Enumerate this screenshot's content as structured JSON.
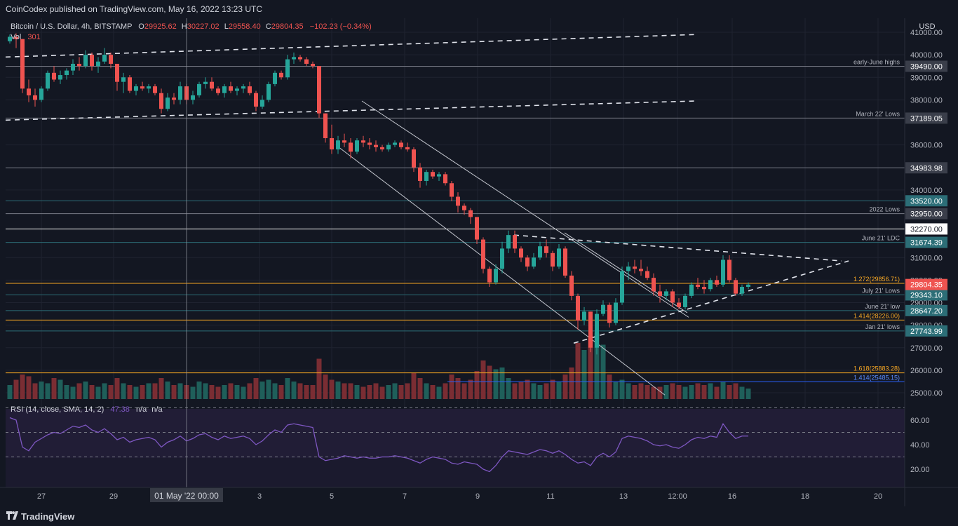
{
  "header": {
    "publisher_text": "CoinCodex published on TradingView.com, May 16, 2022 13:23 UTC"
  },
  "footer": {
    "brand": "TradingView"
  },
  "legend": {
    "symbol": "Bitcoin / U.S. Dollar, 4h, BITSTAMP",
    "open_label": "O",
    "open": "29925.62",
    "high_label": "H",
    "high": "30227.02",
    "low_label": "L",
    "low": "29558.40",
    "close_label": "C",
    "close": "29804.35",
    "change": "−102.23 (−0.34%)",
    "vol_label": "Vol",
    "vol_value": "301"
  },
  "rsi_legend": {
    "label": "RSI (14, close, SMA, 14, 2)",
    "value": "47.38",
    "na1": "n/a",
    "na2": "n/a"
  },
  "currency": "USD",
  "crosshair_label": "01 May '22  00:00",
  "colors": {
    "up": "#26a69a",
    "down": "#ef5350",
    "orange": "#f5a623",
    "blue": "#2962ff",
    "teal_tag": "#2c6e77",
    "rsi": "#7e57c2"
  },
  "chart_data": {
    "type": "candlestick",
    "symbol": "Bitcoin / U.S. Dollar",
    "interval": "4h",
    "exchange": "BITSTAMP",
    "ylim": [
      24700,
      41500
    ],
    "y_ticks": [
      "25000.00",
      "26000.00",
      "27000.00",
      "28000.00",
      "29000.00",
      "30000.00",
      "31000.00",
      "34000.00",
      "36000.00",
      "38000.00",
      "39000.00",
      "40000.00",
      "41000.00"
    ],
    "x_ticks": [
      "27",
      "29",
      "3",
      "5",
      "7",
      "9",
      "11",
      "13",
      "12:00",
      "16",
      "18",
      "20"
    ],
    "hlines": [
      {
        "price": 39490.0,
        "tag": "39490.00",
        "label": "early-June highs",
        "color": "#787b86"
      },
      {
        "price": 37189.05,
        "tag": "37189.05",
        "label": "March 22' Lows",
        "color": "#787b86"
      },
      {
        "price": 34983.98,
        "tag": "34983.98",
        "label": "",
        "color": "#787b86"
      },
      {
        "price": 33520.0,
        "tag": "33520.00",
        "label": "",
        "color": "#2c6e77"
      },
      {
        "price": 32950.0,
        "tag": "32950.00",
        "label": "2022 Lows",
        "color": "#787b86"
      },
      {
        "price": 32270.0,
        "tag": "32270.00",
        "label": "",
        "color": "#ffffff"
      },
      {
        "price": 31674.39,
        "tag": "31674.39",
        "label": "June 21' LDC",
        "color": "#2c6e77"
      },
      {
        "price": 29856.71,
        "tag": "",
        "label": "1.272(29856.71)",
        "color": "#f5a623"
      },
      {
        "price": 29343.1,
        "tag": "29343.10",
        "label": "July 21' Lows",
        "color": "#2c6e77"
      },
      {
        "price": 28647.2,
        "tag": "28647.20",
        "label": "June 21' low",
        "color": "#2c6e77"
      },
      {
        "price": 28226.0,
        "tag": "",
        "label": "1.414(28226.00)",
        "color": "#f5a623"
      },
      {
        "price": 27743.99,
        "tag": "27743.99",
        "label": "Jan 21' lows",
        "color": "#2c6e77"
      },
      {
        "price": 25883.28,
        "tag": "",
        "label": "1.618(25883.28)",
        "color": "#f5a623"
      },
      {
        "price": 25485.15,
        "tag": "",
        "label": "1.414(25485.15)",
        "color": "#2962ff"
      }
    ],
    "last_price": {
      "price": 29804.35,
      "tag": "29804.35"
    },
    "candles": [
      [
        40600,
        40900,
        40500,
        40800
      ],
      [
        40800,
        40950,
        40300,
        40700
      ],
      [
        40700,
        40700,
        38300,
        38500
      ],
      [
        38500,
        38900,
        37900,
        38200
      ],
      [
        38200,
        38500,
        37700,
        38000
      ],
      [
        38000,
        38600,
        37900,
        38500
      ],
      [
        38500,
        39300,
        38400,
        39200
      ],
      [
        39200,
        39500,
        38800,
        38900
      ],
      [
        38900,
        39300,
        38700,
        39100
      ],
      [
        39100,
        39400,
        38900,
        39300
      ],
      [
        39300,
        39800,
        39100,
        39600
      ],
      [
        39600,
        39900,
        39300,
        39500
      ],
      [
        39500,
        40200,
        39400,
        40000
      ],
      [
        40000,
        40100,
        39300,
        39500
      ],
      [
        39500,
        39900,
        39200,
        39700
      ],
      [
        39700,
        40300,
        39600,
        40000
      ],
      [
        40000,
        40100,
        39400,
        39600
      ],
      [
        39600,
        39600,
        38400,
        38800
      ],
      [
        38800,
        39200,
        38300,
        39000
      ],
      [
        39000,
        39100,
        38300,
        38400
      ],
      [
        38400,
        38700,
        38200,
        38600
      ],
      [
        38600,
        38800,
        38400,
        38500
      ],
      [
        38500,
        38700,
        38300,
        38600
      ],
      [
        38600,
        38700,
        38200,
        38300
      ],
      [
        38300,
        38500,
        37400,
        37600
      ],
      [
        37600,
        38300,
        37500,
        38100
      ],
      [
        38100,
        38300,
        37800,
        38000
      ],
      [
        38000,
        38800,
        37800,
        38600
      ],
      [
        38600,
        38700,
        37800,
        38000
      ],
      [
        38000,
        38400,
        37800,
        38200
      ],
      [
        38200,
        38800,
        38100,
        38700
      ],
      [
        38700,
        39000,
        38500,
        38800
      ],
      [
        38800,
        39000,
        38400,
        38500
      ],
      [
        38500,
        38600,
        38200,
        38300
      ],
      [
        38300,
        38700,
        38100,
        38600
      ],
      [
        38600,
        38800,
        38300,
        38400
      ],
      [
        38400,
        38600,
        38200,
        38500
      ],
      [
        38500,
        38700,
        38300,
        38600
      ],
      [
        38600,
        38800,
        38200,
        38300
      ],
      [
        38300,
        38400,
        37500,
        37700
      ],
      [
        37700,
        38200,
        37600,
        38000
      ],
      [
        38000,
        38800,
        37900,
        38700
      ],
      [
        38700,
        39300,
        38600,
        39200
      ],
      [
        39200,
        39300,
        38900,
        39000
      ],
      [
        39000,
        40000,
        38900,
        39800
      ],
      [
        39800,
        40100,
        39600,
        39900
      ],
      [
        39900,
        40000,
        39700,
        39800
      ],
      [
        39800,
        39900,
        39500,
        39600
      ],
      [
        39600,
        39700,
        39400,
        39500
      ],
      [
        39500,
        39500,
        37200,
        37400
      ],
      [
        37400,
        37400,
        36100,
        36300
      ],
      [
        36300,
        36900,
        35600,
        35800
      ],
      [
        35800,
        36400,
        35600,
        36200
      ],
      [
        36200,
        36500,
        35900,
        36100
      ],
      [
        36100,
        36300,
        35400,
        35700
      ],
      [
        35700,
        36300,
        35600,
        36200
      ],
      [
        36200,
        36400,
        35900,
        36100
      ],
      [
        36100,
        36300,
        35800,
        36000
      ],
      [
        36000,
        36200,
        35700,
        35900
      ],
      [
        35900,
        36000,
        35700,
        35800
      ],
      [
        35800,
        36100,
        35700,
        36000
      ],
      [
        36000,
        36200,
        35900,
        36100
      ],
      [
        36100,
        36200,
        35800,
        35900
      ],
      [
        35900,
        36100,
        35700,
        35800
      ],
      [
        35800,
        35900,
        34800,
        35000
      ],
      [
        35000,
        35200,
        34100,
        34400
      ],
      [
        34400,
        34900,
        34200,
        34800
      ],
      [
        34800,
        34900,
        34500,
        34600
      ],
      [
        34600,
        34800,
        34400,
        34700
      ],
      [
        34700,
        34800,
        34200,
        34300
      ],
      [
        34300,
        34400,
        33500,
        33700
      ],
      [
        33700,
        33900,
        33000,
        33300
      ],
      [
        33300,
        33400,
        32900,
        33100
      ],
      [
        33100,
        33200,
        32500,
        32800
      ],
      [
        32800,
        32800,
        31600,
        31800
      ],
      [
        31800,
        31900,
        30300,
        30500
      ],
      [
        30500,
        30600,
        29700,
        29900
      ],
      [
        29900,
        30700,
        29800,
        30500
      ],
      [
        30500,
        31700,
        30300,
        31400
      ],
      [
        31400,
        32200,
        31200,
        32000
      ],
      [
        32000,
        32200,
        31200,
        31400
      ],
      [
        31400,
        31500,
        30800,
        31000
      ],
      [
        31000,
        31100,
        30400,
        30600
      ],
      [
        30600,
        31200,
        30500,
        31000
      ],
      [
        31000,
        31700,
        30900,
        31500
      ],
      [
        31500,
        31800,
        31000,
        31200
      ],
      [
        31200,
        31300,
        30400,
        30600
      ],
      [
        30600,
        31600,
        30500,
        31400
      ],
      [
        31400,
        31500,
        30100,
        30200
      ],
      [
        30200,
        30400,
        29100,
        29300
      ],
      [
        29300,
        29400,
        27800,
        28200
      ],
      [
        28200,
        28800,
        28000,
        28600
      ],
      [
        28600,
        28600,
        26800,
        27000
      ],
      [
        27000,
        28700,
        26700,
        28500
      ],
      [
        28500,
        29100,
        28400,
        28900
      ],
      [
        28900,
        29000,
        27900,
        28100
      ],
      [
        28100,
        29200,
        28000,
        29000
      ],
      [
        29000,
        30600,
        28900,
        30400
      ],
      [
        30400,
        30800,
        30000,
        30600
      ],
      [
        30600,
        30900,
        30300,
        30500
      ],
      [
        30500,
        30900,
        30200,
        30400
      ],
      [
        30400,
        30600,
        30000,
        30100
      ],
      [
        30100,
        30300,
        29300,
        29500
      ],
      [
        29500,
        29800,
        29000,
        29300
      ],
      [
        29300,
        29600,
        29100,
        29500
      ],
      [
        29500,
        29600,
        28800,
        29000
      ],
      [
        29000,
        29200,
        28700,
        28800
      ],
      [
        28800,
        29400,
        28700,
        29300
      ],
      [
        29300,
        29900,
        29200,
        29800
      ],
      [
        29800,
        30100,
        29600,
        29700
      ],
      [
        29700,
        30000,
        29400,
        29600
      ],
      [
        29600,
        30100,
        29500,
        30000
      ],
      [
        30000,
        30200,
        29700,
        29800
      ],
      [
        29800,
        31100,
        29700,
        30900
      ],
      [
        30900,
        31100,
        29900,
        30000
      ],
      [
        30000,
        30100,
        29300,
        29400
      ],
      [
        29400,
        29800,
        29300,
        29700
      ],
      [
        29700,
        29900,
        29600,
        29800
      ]
    ],
    "volume": [
      8,
      11,
      14,
      13,
      9,
      10,
      9,
      12,
      11,
      8,
      7,
      9,
      10,
      8,
      7,
      9,
      8,
      12,
      9,
      8,
      7,
      8,
      9,
      9,
      12,
      10,
      8,
      9,
      8,
      7,
      10,
      9,
      8,
      7,
      8,
      9,
      8,
      7,
      9,
      12,
      10,
      11,
      9,
      8,
      12,
      10,
      9,
      8,
      8,
      23,
      14,
      11,
      10,
      9,
      9,
      8,
      7,
      8,
      9,
      7,
      8,
      9,
      8,
      9,
      15,
      12,
      9,
      8,
      7,
      9,
      14,
      12,
      9,
      11,
      16,
      22,
      19,
      17,
      18,
      12,
      9,
      10,
      11,
      9,
      8,
      9,
      11,
      10,
      14,
      18,
      32,
      28,
      36,
      38,
      31,
      14,
      10,
      11,
      9,
      8,
      9,
      8,
      7,
      7,
      8,
      9,
      8,
      7,
      8,
      9,
      8,
      9,
      7,
      10,
      8,
      9,
      7,
      6
    ],
    "rsi": [
      62,
      60,
      38,
      35,
      42,
      45,
      48,
      50,
      49,
      52,
      55,
      54,
      56,
      52,
      50,
      53,
      49,
      44,
      46,
      42,
      44,
      45,
      46,
      44,
      38,
      42,
      44,
      47,
      43,
      45,
      48,
      49,
      46,
      44,
      47,
      45,
      46,
      47,
      45,
      40,
      43,
      48,
      52,
      50,
      56,
      57,
      56,
      55,
      54,
      30,
      27,
      28,
      29,
      31,
      30,
      29,
      30,
      29,
      29,
      30,
      30,
      31,
      30,
      29,
      27,
      25,
      28,
      30,
      29,
      28,
      25,
      24,
      26,
      25,
      24,
      20,
      18,
      23,
      30,
      35,
      34,
      33,
      32,
      34,
      36,
      35,
      33,
      35,
      32,
      28,
      25,
      26,
      23,
      30,
      33,
      30,
      34,
      45,
      47,
      46,
      45,
      43,
      40,
      39,
      40,
      38,
      37,
      40,
      44,
      46,
      45,
      47,
      46,
      57,
      50,
      45,
      47,
      47
    ]
  }
}
